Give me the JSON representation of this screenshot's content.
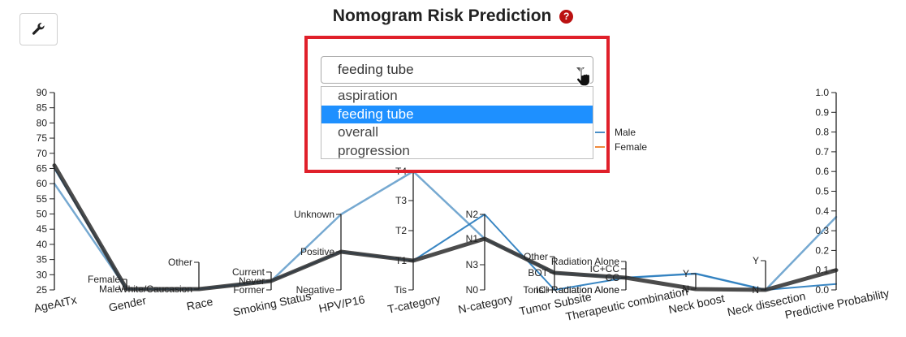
{
  "title": "Nomogram Risk Prediction",
  "help_icon": "question-circle-icon",
  "tool_icon": "wrench-icon",
  "select": {
    "value": "feeding tube",
    "options": [
      {
        "label": "aspiration",
        "selected": false
      },
      {
        "label": "feeding tube",
        "selected": true
      },
      {
        "label": "overall",
        "selected": false
      },
      {
        "label": "progression",
        "selected": false
      }
    ]
  },
  "legend": [
    {
      "label": "Male",
      "color": "#4a8fc7"
    },
    {
      "label": "Female",
      "color": "#f08a3c"
    }
  ],
  "colors": {
    "light_blue": "#6fa4cf",
    "blue": "#2e7fc0",
    "dark": "#333333",
    "highlight": "#e0202a",
    "axis": "#222222"
  },
  "chart_data": {
    "type": "parallel-coordinates",
    "axes": [
      {
        "name": "AgeAtTx",
        "kind": "numeric",
        "min": 25,
        "max": 90,
        "ticks": [
          "25",
          "30",
          "35",
          "40",
          "45",
          "50",
          "55",
          "60",
          "65",
          "70",
          "75",
          "80",
          "85",
          "90"
        ]
      },
      {
        "name": "Gender",
        "kind": "categorical",
        "categories": [
          "Male",
          "Female"
        ],
        "tick_side": "left"
      },
      {
        "name": "Race",
        "kind": "categorical",
        "categories": [
          "White/Caucasion",
          "Other"
        ],
        "tick_side": "left"
      },
      {
        "name": "Smoking Status",
        "kind": "categorical",
        "categories": [
          "Former",
          "Never",
          "Current"
        ],
        "tick_side": "left"
      },
      {
        "name": "HPV/P16",
        "kind": "categorical",
        "categories": [
          "Negative",
          "Positive",
          "Unknown"
        ],
        "tick_side": "left"
      },
      {
        "name": "T-category",
        "kind": "categorical",
        "categories": [
          "Tis",
          "T1",
          "T2",
          "T3",
          "T4"
        ],
        "tick_side": "left"
      },
      {
        "name": "N-category",
        "kind": "categorical",
        "categories": [
          "N0",
          "N3",
          "N1",
          "N2"
        ],
        "tick_side": "left"
      },
      {
        "name": "Tumor Subsite",
        "kind": "categorical",
        "categories": [
          "Tonsil",
          "BOT",
          "Other"
        ],
        "tick_side": "left"
      },
      {
        "name": "Therapeutic combination",
        "kind": "categorical",
        "categories": [
          "Radiation Alone",
          "CC",
          "IC+CC",
          "IC+Radiation Alone",
          "Radiation Alone"
        ],
        "tick_side": "left"
      },
      {
        "name": "Neck boost",
        "kind": "categorical",
        "categories": [
          "Y",
          "N"
        ],
        "tick_side": "left"
      },
      {
        "name": "Neck dissection",
        "kind": "categorical",
        "categories": [
          "N",
          "Y"
        ],
        "tick_side": "left"
      },
      {
        "name": "Predictive Probability",
        "kind": "numeric",
        "min": 0.0,
        "max": 1.0,
        "tick_side": "left",
        "ticks": [
          "0.0",
          "0.1",
          "0.2",
          "0.3",
          "0.4",
          "0.5",
          "0.6",
          "0.7",
          "0.8",
          "0.9",
          "1.0"
        ]
      }
    ],
    "series": [
      {
        "color": "light_blue",
        "width": 2.5,
        "values": [
          60,
          "Male",
          "White/Caucasion",
          "Never",
          "Unknown",
          "T4",
          "N1",
          "BOT",
          "CC",
          "Y",
          "N",
          0.37
        ]
      },
      {
        "color": "blue",
        "width": 2,
        "values": [
          65,
          "Male",
          "White/Caucasion",
          "Never",
          "Positive",
          "T1",
          "N2",
          "Tonsil",
          "CC",
          "Y",
          "N",
          0.03
        ]
      },
      {
        "color": "dark",
        "width": 5,
        "values": [
          66,
          "Male",
          "White/Caucasion",
          "Never",
          "Positive",
          "T1",
          "N1",
          "BOT",
          "CC",
          "N",
          "N",
          0.1
        ]
      }
    ]
  }
}
